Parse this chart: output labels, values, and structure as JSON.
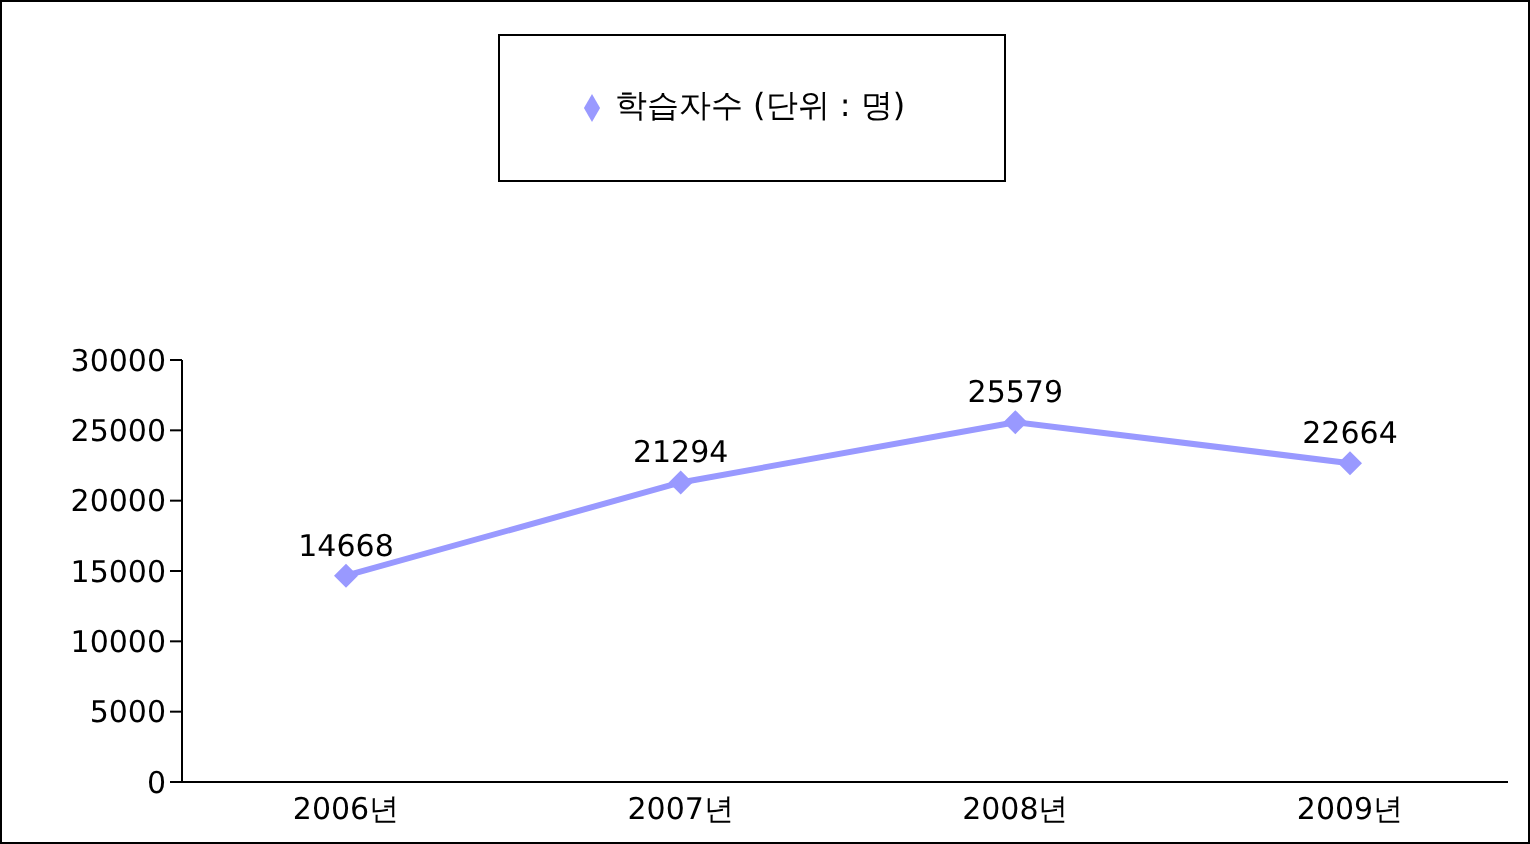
{
  "chart_data": {
    "type": "line",
    "categories": [
      "2006년",
      "2007년",
      "2008년",
      "2009년"
    ],
    "series": [
      {
        "name": "학습자수 (단위 : 명)",
        "color": "#9999ff",
        "values": [
          14668,
          21294,
          25579,
          22664
        ]
      }
    ],
    "ylim": [
      0,
      30000
    ],
    "yticks": [
      0,
      5000,
      10000,
      15000,
      20000,
      25000,
      30000
    ],
    "grid": false,
    "legend": "top",
    "marker": "diamond",
    "line_style": "solid",
    "data_labels": true
  }
}
